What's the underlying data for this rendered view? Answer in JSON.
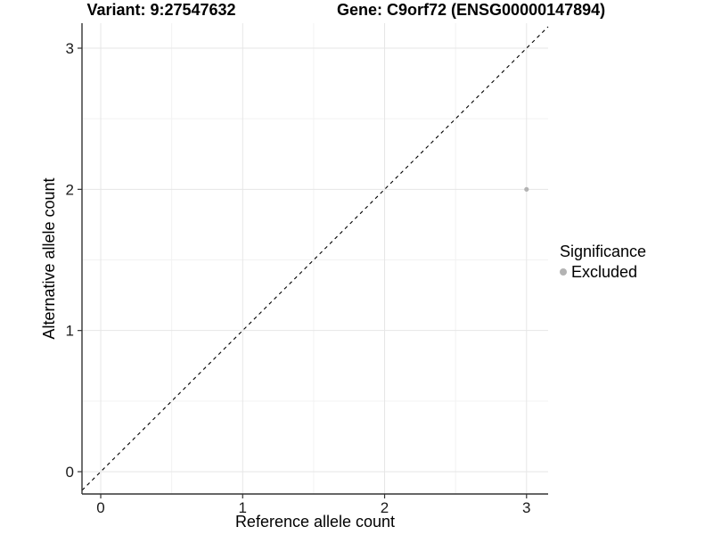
{
  "header": {
    "variant_title": "Variant: 9:27547632",
    "gene_title": "Gene: C9orf72 (ENSG00000147894)"
  },
  "colors": {
    "axis": "#333333",
    "text": "#1a1a1a",
    "grid_major": "#e6e6e6",
    "grid_minor": "#f2f2f2",
    "excluded_point": "#b3b3b3",
    "reference_line": "#000000",
    "background": "#ffffff"
  },
  "chart_data": {
    "type": "scatter",
    "title": "Variant: 9:27547632 — Gene: C9orf72 (ENSG00000147894)",
    "xlabel": "Reference allele count",
    "ylabel": "Alternative allele count",
    "xlim": [
      -0.132,
      3.152
    ],
    "ylim": [
      -0.158,
      3.177
    ],
    "xticks": [
      0,
      1,
      2,
      3
    ],
    "yticks": [
      0,
      1,
      2,
      3
    ],
    "minor_ticks": [
      0.5,
      1.5,
      2.5
    ],
    "grid": "major+minor",
    "reference_line": {
      "type": "identity y=x",
      "style": "dashed",
      "color": "#000000"
    },
    "points": [
      {
        "x": 3,
        "y": 2,
        "series": "Excluded"
      }
    ],
    "series": [
      {
        "name": "Excluded",
        "color": "#b3b3b3"
      }
    ],
    "legend": {
      "title": "Significance",
      "position": "right",
      "entries": [
        {
          "label": "Excluded",
          "color": "#b3b3b3"
        }
      ]
    }
  }
}
